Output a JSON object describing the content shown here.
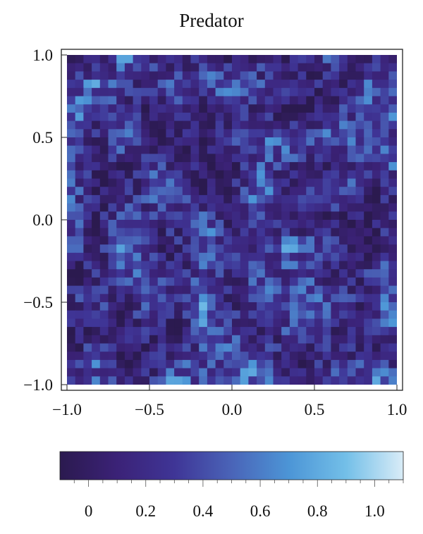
{
  "chart_data": {
    "type": "heatmap",
    "title": "Predator",
    "xlabel": "",
    "ylabel": "",
    "xlim": [
      -1.0,
      1.0
    ],
    "ylim": [
      -1.0,
      1.0
    ],
    "x_ticks": [
      -1.0,
      -0.5,
      0.0,
      0.5,
      1.0
    ],
    "x_tick_labels": [
      "−1.0",
      "−0.5",
      "0.0",
      "0.5",
      "1.0"
    ],
    "y_ticks": [
      1.0,
      0.5,
      0.0,
      -0.5,
      -1.0
    ],
    "y_tick_labels": [
      "1.0",
      "0.5",
      "0.0",
      "−0.5",
      "−1.0"
    ],
    "color_scale": {
      "range": [
        -0.1,
        1.1
      ],
      "ticks": [
        0,
        0.2,
        0.4,
        0.6,
        0.8,
        1.0
      ],
      "tick_labels": [
        "0",
        "0.2",
        "0.4",
        "0.6",
        "0.8",
        "1.0"
      ],
      "stops": [
        "#2b1a4f",
        "#3b2277",
        "#3f3596",
        "#4a64b8",
        "#4c95d6",
        "#73bfe8",
        "#d9ecf7"
      ]
    },
    "grid": false,
    "field_description": "noisy spatial predator density, values mostly 0.2 to 0.9, patchy"
  }
}
